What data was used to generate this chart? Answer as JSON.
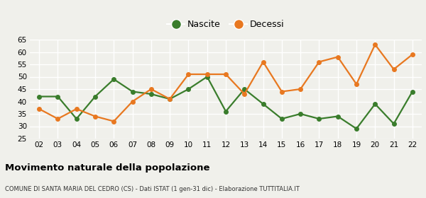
{
  "years": [
    "02",
    "03",
    "04",
    "05",
    "06",
    "07",
    "08",
    "09",
    "10",
    "11",
    "12",
    "13",
    "14",
    "15",
    "16",
    "17",
    "18",
    "19",
    "20",
    "21",
    "22"
  ],
  "nascite": [
    42,
    42,
    33,
    42,
    49,
    44,
    43,
    41,
    45,
    50,
    36,
    45,
    39,
    33,
    35,
    33,
    34,
    29,
    39,
    31,
    44
  ],
  "decessi": [
    37,
    33,
    37,
    34,
    32,
    40,
    45,
    41,
    51,
    51,
    51,
    43,
    56,
    44,
    45,
    56,
    58,
    47,
    63,
    53,
    59
  ],
  "nascite_color": "#3a7d2c",
  "decessi_color": "#e87820",
  "nascite_label": "Nascite",
  "decessi_label": "Decessi",
  "ylim": [
    25,
    65
  ],
  "yticks": [
    25,
    30,
    35,
    40,
    45,
    50,
    55,
    60,
    65
  ],
  "title": "Movimento naturale della popolazione",
  "subtitle": "COMUNE DI SANTA MARIA DEL CEDRO (CS) - Dati ISTAT (1 gen-31 dic) - Elaborazione TUTTITALIA.IT",
  "bg_color": "#f0f0eb",
  "grid_color": "#ffffff",
  "marker_size": 4,
  "line_width": 1.6
}
